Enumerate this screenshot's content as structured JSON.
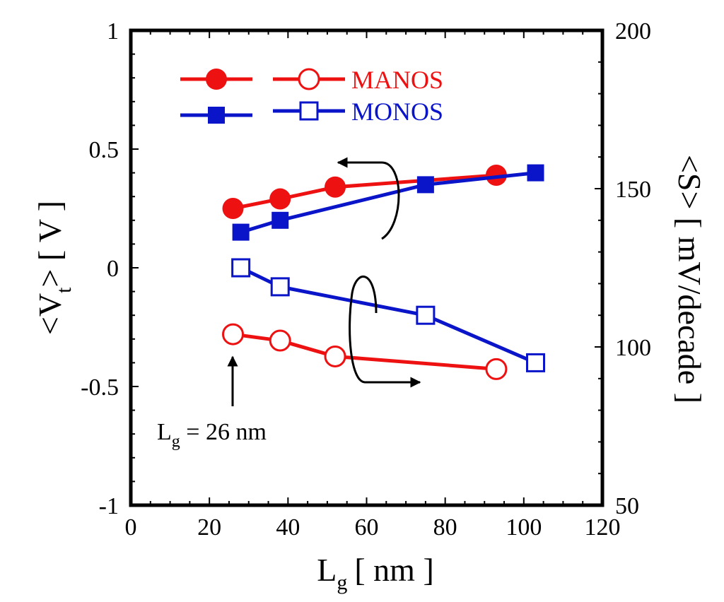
{
  "chart_data": {
    "type": "line",
    "x_axis": {
      "label_main": "L",
      "label_sub": "g",
      "label_unit": "[ nm ]",
      "range": [
        0,
        120
      ],
      "ticks": [
        0,
        20,
        40,
        60,
        80,
        100,
        120
      ],
      "tick_labels": [
        "0",
        "20",
        "40",
        "60",
        "80",
        "100",
        "120"
      ],
      "minor_step": 5
    },
    "y_left": {
      "label_main": "<V",
      "label_sub": "t",
      "label_rest": "> [ V ]",
      "range": [
        -1,
        1
      ],
      "ticks": [
        -1,
        -0.5,
        0,
        0.5,
        1
      ],
      "tick_labels": [
        "-1",
        "-0.5",
        "0",
        "0.5",
        "1"
      ],
      "minor_step": 0.1
    },
    "y_right": {
      "label": "<S> [ mV/decade ]",
      "range": [
        50,
        200
      ],
      "ticks": [
        50,
        100,
        150,
        200
      ],
      "tick_labels": [
        "50",
        "100",
        "150",
        "200"
      ],
      "minor_step": 10
    },
    "series": [
      {
        "name": "MANOS V_t",
        "legend_group": "MANOS",
        "axis": "left",
        "marker": "circle",
        "filled": true,
        "color": "#ee1111",
        "x": [
          26,
          38,
          52,
          93
        ],
        "values": [
          0.25,
          0.29,
          0.34,
          0.39
        ]
      },
      {
        "name": "MONOS V_t",
        "legend_group": "MONOS",
        "axis": "left",
        "marker": "square",
        "filled": true,
        "color": "#0a14c8",
        "x": [
          28,
          38,
          75,
          103
        ],
        "values": [
          0.15,
          0.2,
          0.35,
          0.4
        ]
      },
      {
        "name": "MANOS S",
        "legend_group": "MANOS",
        "axis": "right",
        "marker": "circle",
        "filled": false,
        "color": "#ee1111",
        "x": [
          26,
          38,
          52,
          93
        ],
        "values": [
          104,
          102,
          97,
          93
        ]
      },
      {
        "name": "MONOS S",
        "legend_group": "MONOS",
        "axis": "right",
        "marker": "square",
        "filled": false,
        "color": "#0a14c8",
        "x": [
          28,
          38,
          75,
          103
        ],
        "values": [
          125,
          119,
          110,
          95
        ]
      }
    ],
    "legend": {
      "placement": "top-left",
      "entries": [
        {
          "label": "MANOS",
          "color": "#ee1111",
          "marker": "circle"
        },
        {
          "label": "MONOS",
          "color": "#0a14c8",
          "marker": "square"
        }
      ]
    },
    "annotations": [
      {
        "text_main": "L",
        "text_sub": "g",
        "text_rest": " = 26 nm",
        "target_x": 26
      }
    ],
    "grid": false
  }
}
